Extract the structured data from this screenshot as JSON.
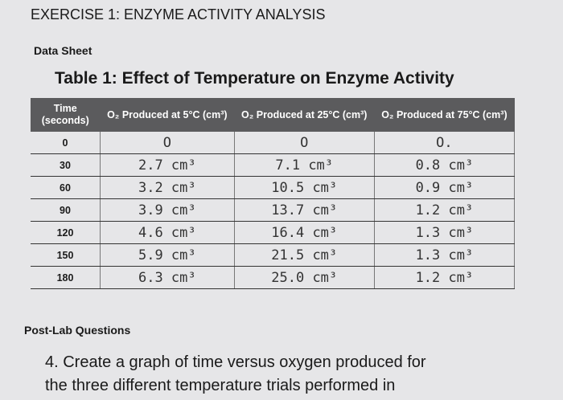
{
  "header": {
    "title": "EXERCISE 1: ENZYME ACTIVITY ANALYSIS",
    "subtitle": "Data Sheet"
  },
  "table": {
    "title": "Table 1: Effect of Temperature on Enzyme Activity",
    "columns": [
      "Time (seconds)",
      "O₂ Produced at 5°C (cm³)",
      "O₂ Produced at 25°C (cm³)",
      "O₂ Produced at 75°C (cm³)"
    ],
    "rows": [
      [
        "0",
        "O",
        "O",
        "O."
      ],
      [
        "30",
        "2.7 cm³",
        "7.1 cm³",
        "0.8 cm³"
      ],
      [
        "60",
        "3.2 cm³",
        "10.5 cm³",
        "0.9 cm³"
      ],
      [
        "90",
        "3.9 cm³",
        "13.7 cm³",
        "1.2 cm³"
      ],
      [
        "120",
        "4.6 cm³",
        "16.4 cm³",
        "1.3 cm³"
      ],
      [
        "150",
        "5.9 cm³",
        "21.5 cm³",
        "1.3 cm³"
      ],
      [
        "180",
        "6.3 cm³",
        "25.0 cm³",
        "1.2 cm³"
      ]
    ]
  },
  "questions": {
    "heading": "Post-Lab Questions",
    "lines": [
      "4. Create a graph of time versus oxygen produced for",
      "the three different temperature trials performed in"
    ]
  }
}
